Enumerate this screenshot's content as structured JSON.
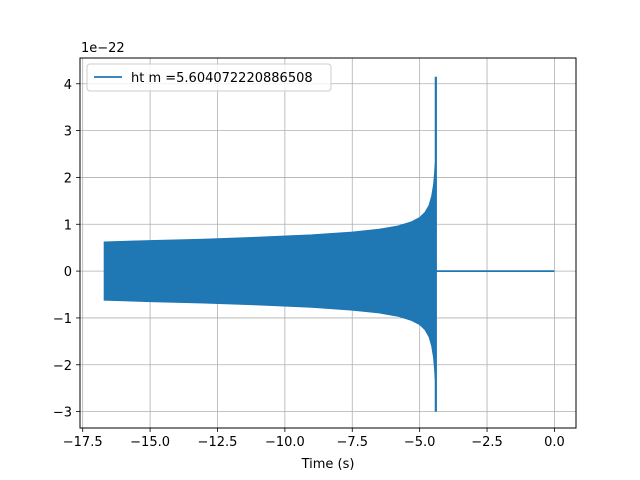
{
  "chart_data": {
    "type": "line",
    "title": "",
    "xlabel": "Time (s)",
    "ylabel": "",
    "y_offset_text": "1e−22",
    "xlim": [
      -17.6,
      0.8
    ],
    "ylim": [
      -3.35,
      4.55
    ],
    "x_ticks": [
      -17.5,
      -15.0,
      -12.5,
      -10.0,
      -7.5,
      -5.0,
      -2.5,
      0.0
    ],
    "x_tick_labels": [
      "−17.5",
      "−15.0",
      "−12.5",
      "−10.0",
      "−7.5",
      "−5.0",
      "−2.5",
      "0.0"
    ],
    "y_ticks": [
      -3,
      -2,
      -1,
      0,
      1,
      2,
      3,
      4
    ],
    "y_tick_labels": [
      "−3",
      "−2",
      "−1",
      "0",
      "1",
      "2",
      "3",
      "4"
    ],
    "grid": true,
    "legend_position": "upper-left",
    "series": [
      {
        "name": "ht m =5.604072220886508",
        "color": "#1f77b4",
        "envelope_upper": {
          "x": [
            -16.7,
            -15.0,
            -13.0,
            -11.0,
            -9.0,
            -7.5,
            -6.5,
            -5.8,
            -5.3,
            -5.0,
            -4.8,
            -4.65,
            -4.55,
            -4.48,
            -4.44,
            -4.42
          ],
          "y": [
            0.62,
            0.65,
            0.68,
            0.72,
            0.77,
            0.83,
            0.89,
            0.96,
            1.05,
            1.14,
            1.25,
            1.4,
            1.6,
            1.85,
            2.1,
            2.3
          ]
        },
        "envelope_lower": {
          "x": [
            -16.7,
            -15.0,
            -13.0,
            -11.0,
            -9.0,
            -7.5,
            -6.5,
            -5.8,
            -5.3,
            -5.0,
            -4.8,
            -4.65,
            -4.55,
            -4.48,
            -4.44,
            -4.42
          ],
          "y": [
            -0.62,
            -0.65,
            -0.68,
            -0.72,
            -0.77,
            -0.83,
            -0.89,
            -0.96,
            -1.05,
            -1.14,
            -1.25,
            -1.4,
            -1.6,
            -1.85,
            -2.1,
            -2.3
          ]
        },
        "merger_spike": {
          "x": -4.4,
          "y_max": 4.15,
          "y_min": -3.0
        },
        "ringdown_tail": {
          "x": [
            -4.4,
            0.0
          ],
          "y": [
            0.0,
            0.0
          ]
        }
      }
    ]
  }
}
